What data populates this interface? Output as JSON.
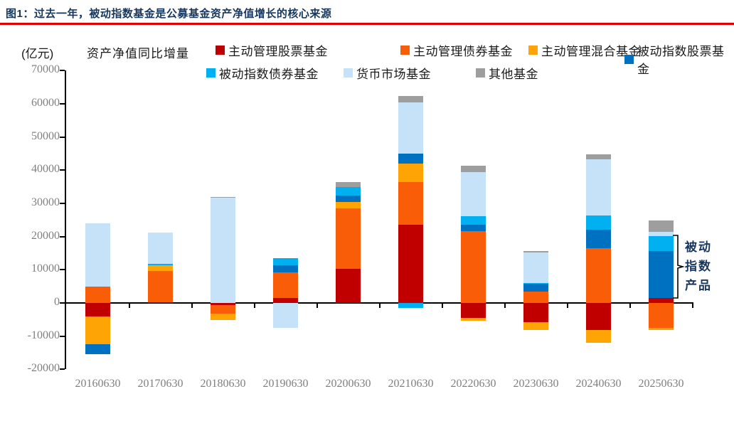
{
  "header": {
    "title": "图1：过去一年，被动指数基金是公募基金资产净值增长的核心来源",
    "title_color": "#17375E",
    "rule_color": "#E00000"
  },
  "legend": {
    "unit_label": "(亿元)",
    "metric_label": "资产净值同比增量"
  },
  "annotation": {
    "full_text": "被动指数产品",
    "lines": [
      "被动",
      "指数",
      "产品"
    ],
    "color": "#17375E"
  },
  "chart_data": {
    "type": "bar",
    "subtype": "stacked-bar",
    "title": "过去一年，被动指数基金是公募基金资产净值增长的核心来源",
    "xlabel": "",
    "ylabel": "资产净值同比增量 (亿元)",
    "ylim": [
      -20000,
      70000
    ],
    "yticks": [
      70000,
      60000,
      50000,
      40000,
      30000,
      20000,
      10000,
      0,
      -10000,
      -20000
    ],
    "grid": false,
    "legend_position": "top",
    "legend_rows": [
      [
        0,
        1,
        2,
        3
      ],
      [
        4,
        5,
        6
      ]
    ],
    "categories": [
      "20160630",
      "20170630",
      "20180630",
      "20190630",
      "20200630",
      "20210630",
      "20220630",
      "20230630",
      "20240630",
      "20250630"
    ],
    "series": [
      {
        "name": "主动管理股票基金",
        "color": "#C00000",
        "values": [
          -4000,
          300,
          -700,
          1400,
          10200,
          23600,
          -4400,
          -5800,
          -8200,
          1500
        ]
      },
      {
        "name": "主动管理债券基金",
        "color": "#FA5D07",
        "values": [
          5000,
          9400,
          -2600,
          7800,
          18200,
          12700,
          21700,
          3400,
          16500,
          -7600
        ]
      },
      {
        "name": "主动管理混合基金",
        "color": "#FFA405",
        "values": [
          -8500,
          1600,
          -1800,
          0,
          2100,
          5700,
          -900,
          -2400,
          -3900,
          -500
        ]
      },
      {
        "name": "被动指数股票基金",
        "color": "#0070C0",
        "values": [
          -3000,
          0,
          0,
          2100,
          1800,
          3000,
          1900,
          2300,
          5600,
          14100
        ]
      },
      {
        "name": "被动指数债券基金",
        "color": "#00B0F0",
        "values": [
          0,
          400,
          0,
          2100,
          2500,
          -1500,
          2500,
          300,
          4300,
          4600
        ]
      },
      {
        "name": "货币市场基金",
        "color": "#C6E2F8",
        "values": [
          19000,
          9400,
          31700,
          -7500,
          0,
          15300,
          13400,
          9300,
          16900,
          1200
        ]
      },
      {
        "name": "其他基金",
        "color": "#9E9E9E",
        "values": [
          0,
          0,
          200,
          0,
          1600,
          2100,
          1800,
          400,
          1400,
          3400
        ]
      }
    ]
  }
}
